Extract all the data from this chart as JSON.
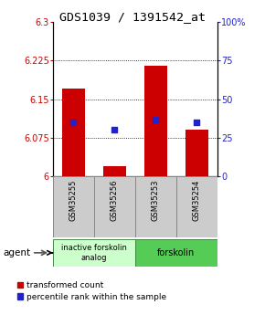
{
  "title": "GDS1039 / 1391542_at",
  "samples": [
    "GSM35255",
    "GSM35256",
    "GSM35253",
    "GSM35254"
  ],
  "red_values": [
    6.17,
    6.02,
    6.215,
    6.09
  ],
  "blue_values": [
    6.105,
    6.09,
    6.11,
    6.105
  ],
  "ylim_left": [
    6.0,
    6.3
  ],
  "ylim_right": [
    0,
    100
  ],
  "yticks_left": [
    6.0,
    6.075,
    6.15,
    6.225,
    6.3
  ],
  "yticks_right": [
    0,
    25,
    50,
    75,
    100
  ],
  "ytick_labels_left": [
    "6",
    "6.075",
    "6.15",
    "6.225",
    "6.3"
  ],
  "ytick_labels_right": [
    "0",
    "25",
    "50",
    "75",
    "100%"
  ],
  "group1_label": "inactive forskolin\nanalog",
  "group2_label": "forskolin",
  "group1_indices": [
    0,
    1
  ],
  "group2_indices": [
    2,
    3
  ],
  "agent_label": "agent",
  "bar_width": 0.55,
  "red_color": "#cc0000",
  "blue_color": "#2222cc",
  "group1_color": "#ccffcc",
  "group2_color": "#55cc55",
  "sample_box_color": "#cccccc",
  "legend_red_label": "transformed count",
  "legend_blue_label": "percentile rank within the sample",
  "title_fontsize": 9.5,
  "tick_fontsize": 7,
  "label_fontsize": 7,
  "legend_fontsize": 6.5
}
